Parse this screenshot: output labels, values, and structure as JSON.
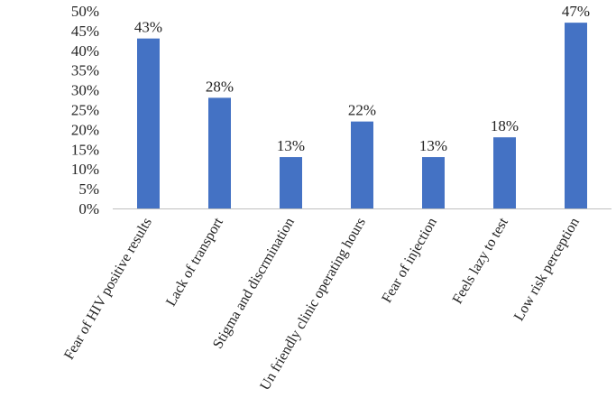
{
  "chart_data": {
    "type": "bar",
    "title": "",
    "xlabel": "",
    "ylabel": "",
    "categories": [
      "Fear of HIV positive results",
      "Lack of transport",
      "Stigma and discrmination",
      "Un friendly clinic operating hours",
      "Fear of injection",
      "Feels lazy to test",
      "Low risk perception"
    ],
    "values": [
      43,
      28,
      13,
      22,
      13,
      18,
      47
    ],
    "data_labels": [
      "43%",
      "28%",
      "13%",
      "22%",
      "13%",
      "18%",
      "47%"
    ],
    "ylim": [
      0,
      50
    ],
    "yticks": [
      0,
      5,
      10,
      15,
      20,
      25,
      30,
      35,
      40,
      45,
      50
    ],
    "ytick_labels": [
      "0%",
      "5%",
      "10%",
      "15%",
      "20%",
      "25%",
      "30%",
      "35%",
      "40%",
      "45%",
      "50%"
    ],
    "bar_color": "#4472C4",
    "grid": false,
    "legend": "none"
  }
}
